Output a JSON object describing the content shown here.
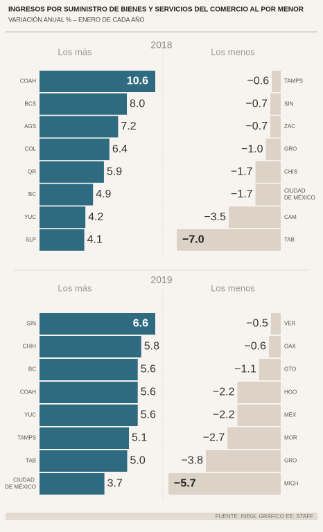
{
  "header": {
    "title": "INGRESOS POR SUMINISTRO DE BIENES Y SERVICIOS DEL COMERCIO AL POR MENOR",
    "subtitle": "VARIACIÓN ANUAL % – ENERO DE CADA AÑO",
    "source": "FUENTE: INEGI. GRÁFICO EE: STAFF"
  },
  "chart_data": [
    {
      "type": "bar",
      "orientation": "horizontal",
      "section": "2018",
      "title": "Los más",
      "color": "#2f6b80",
      "align": "left",
      "categories": [
        "COAH",
        "BCS",
        "AGS",
        "COL",
        "QR",
        "BC",
        "YUC",
        "SLP"
      ],
      "values": [
        10.6,
        8.0,
        7.2,
        6.4,
        5.9,
        4.9,
        4.2,
        4.1
      ],
      "value_labels": [
        "10.6",
        "8.0",
        "7.2",
        "6.4",
        "5.9",
        "4.9",
        "4.2",
        "4.1"
      ],
      "xlim": [
        0,
        10.6
      ]
    },
    {
      "type": "bar",
      "orientation": "horizontal",
      "title": "Los menos",
      "color": "#dcd2c6",
      "align": "right",
      "categories": [
        "TAMPS",
        "SIN",
        "ZAC",
        "GRO",
        "CHIS",
        "CIUDAD DE MÉXICO",
        "CAM",
        "TAB"
      ],
      "values": [
        -0.6,
        -0.7,
        -0.7,
        -1.0,
        -1.7,
        -1.7,
        -3.5,
        -7.0
      ],
      "value_labels": [
        "−0.6",
        "−0.7",
        "−0.7",
        "−1.0",
        "−1.7",
        "−1.7",
        "−3.5",
        "−7.0"
      ],
      "xlim": [
        -7.0,
        0
      ]
    },
    {
      "type": "bar",
      "orientation": "horizontal",
      "section": "2019",
      "title": "Los más",
      "color": "#2f6b80",
      "align": "left",
      "categories": [
        "SIN",
        "CHIH",
        "BC",
        "COAH",
        "YUC",
        "TAMPS",
        "TAB",
        "CIUDAD DE MÉXICO"
      ],
      "values": [
        6.6,
        5.8,
        5.6,
        5.6,
        5.6,
        5.1,
        5.0,
        3.7
      ],
      "value_labels": [
        "6.6",
        "5.8",
        "5.6",
        "5.6",
        "5.6",
        "5.1",
        "5.0",
        "3.7"
      ],
      "xlim": [
        0,
        6.6
      ]
    },
    {
      "type": "bar",
      "orientation": "horizontal",
      "title": "Los menos",
      "color": "#dcd2c6",
      "align": "right",
      "categories": [
        "VER",
        "OAX",
        "GTO",
        "HGO",
        "MÉX",
        "MOR",
        "GRO",
        "MICH"
      ],
      "values": [
        -0.5,
        -0.6,
        -1.1,
        -2.2,
        -2.2,
        -2.7,
        -3.8,
        -5.7
      ],
      "value_labels": [
        "−0.5",
        "−0.6",
        "−1.1",
        "−2.2",
        "−2.2",
        "−2.7",
        "−3.8",
        "−5.7"
      ],
      "xlim": [
        -5.7,
        0
      ]
    }
  ]
}
